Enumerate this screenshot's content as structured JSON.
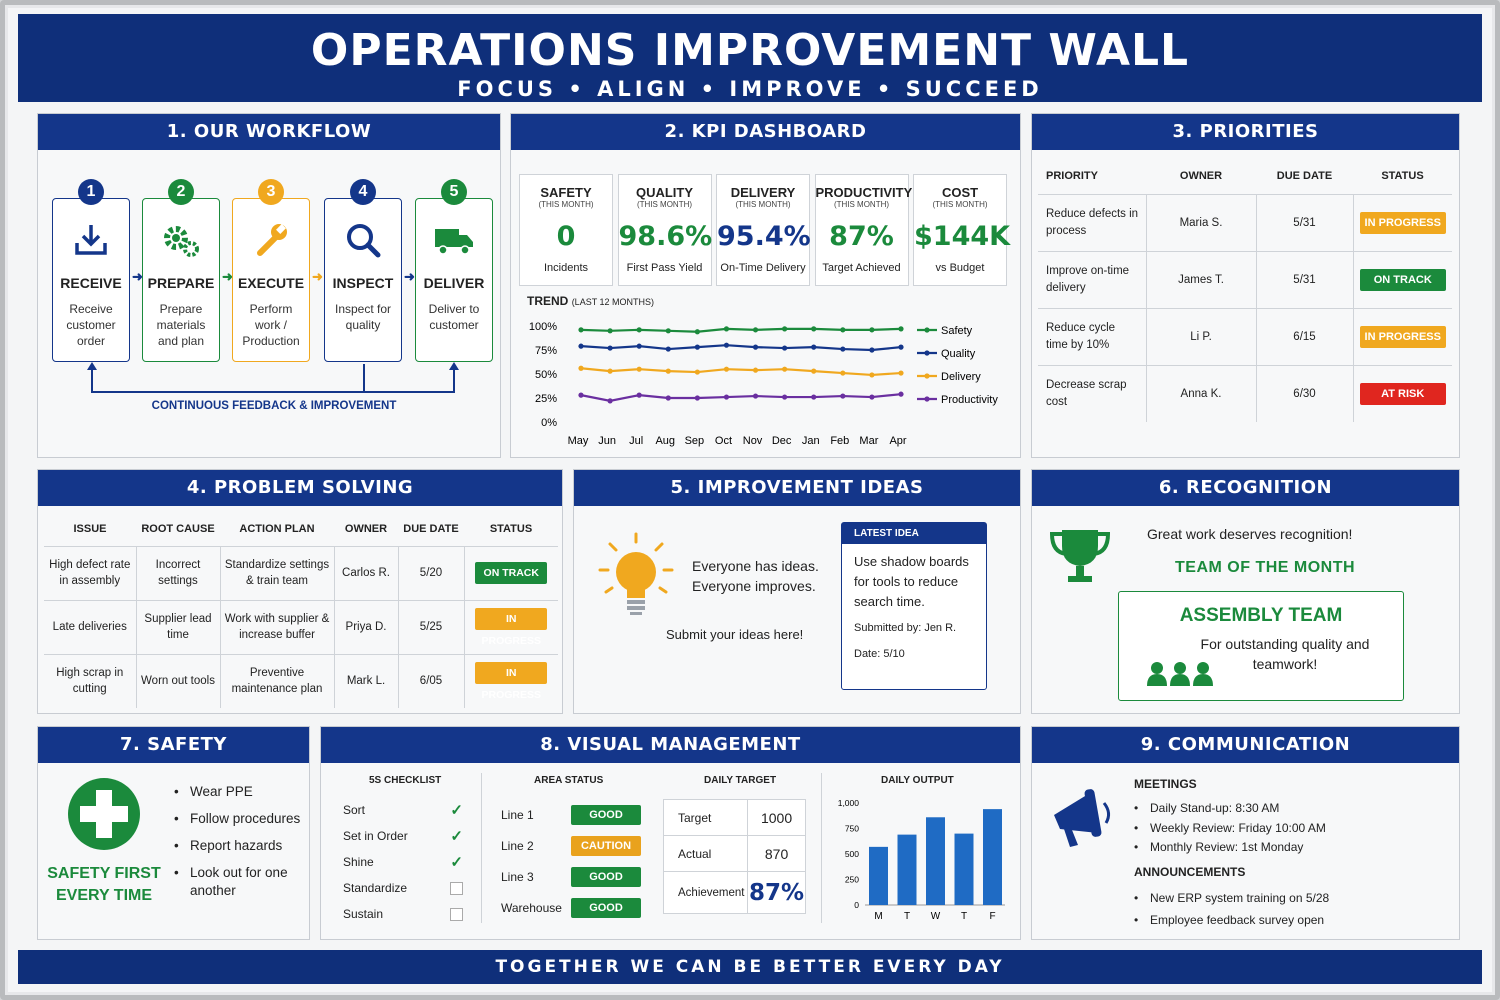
{
  "header": {
    "title": "OPERATIONS IMPROVEMENT WALL",
    "subtitle": "FOCUS • ALIGN • IMPROVE • SUCCEED"
  },
  "footer": {
    "text": "TOGETHER WE CAN BE BETTER EVERY DAY"
  },
  "workflow": {
    "title": "1. OUR WORKFLOW",
    "steps": [
      {
        "num": "1",
        "label": "RECEIVE",
        "desc": "Receive customer order",
        "icon": "download-icon",
        "color": "#14368a"
      },
      {
        "num": "2",
        "label": "PREPARE",
        "desc": "Prepare materials and plan",
        "icon": "gears-icon",
        "color": "#1b8a3c"
      },
      {
        "num": "3",
        "label": "EXECUTE",
        "desc": "Perform work / Production",
        "icon": "wrench-icon",
        "color": "#f0a81f"
      },
      {
        "num": "4",
        "label": "INSPECT",
        "desc": "Inspect for quality",
        "icon": "magnifier-icon",
        "color": "#14368a"
      },
      {
        "num": "5",
        "label": "DELIVER",
        "desc": "Deliver to customer",
        "icon": "truck-icon",
        "color": "#1b8a3c"
      }
    ],
    "feedback": "CONTINUOUS FEEDBACK & IMPROVEMENT"
  },
  "kpi": {
    "title": "2. KPI DASHBOARD",
    "cards": [
      {
        "name": "SAFETY",
        "sub": "(THIS MONTH)",
        "value": "0",
        "label": "Incidents",
        "color": "#1b8a3c"
      },
      {
        "name": "QUALITY",
        "sub": "(THIS MONTH)",
        "value": "98.6%",
        "label": "First Pass Yield",
        "color": "#1b8a3c"
      },
      {
        "name": "DELIVERY",
        "sub": "(THIS MONTH)",
        "value": "95.4%",
        "label": "On-Time Delivery",
        "color": "#14368a"
      },
      {
        "name": "PRODUCTIVITY",
        "sub": "(THIS MONTH)",
        "value": "87%",
        "label": "Target Achieved",
        "color": "#1b8a3c"
      },
      {
        "name": "COST",
        "sub": "(THIS MONTH)",
        "value": "$144K",
        "label": "vs Budget",
        "color": "#1b8a3c"
      }
    ],
    "trend_title": "TREND",
    "trend_sub": "(LAST 12 MONTHS)"
  },
  "chart_data": [
    {
      "type": "line",
      "title": "TREND (LAST 12 MONTHS)",
      "x": [
        "May",
        "Jun",
        "Jul",
        "Aug",
        "Sep",
        "Oct",
        "Nov",
        "Dec",
        "Jan",
        "Feb",
        "Mar",
        "Apr"
      ],
      "ylim": [
        0,
        100
      ],
      "yticks": [
        "0%",
        "25%",
        "50%",
        "75%",
        "100%"
      ],
      "series": [
        {
          "name": "Safety",
          "color": "#1b8a3c",
          "values": [
            96,
            95,
            96,
            95,
            94,
            97,
            96,
            97,
            97,
            96,
            96,
            97
          ]
        },
        {
          "name": "Quality",
          "color": "#14368a",
          "values": [
            79,
            77,
            79,
            76,
            78,
            80,
            78,
            77,
            78,
            76,
            75,
            78
          ]
        },
        {
          "name": "Delivery",
          "color": "#f0a81f",
          "values": [
            56,
            53,
            55,
            53,
            52,
            55,
            54,
            55,
            53,
            51,
            49,
            51
          ]
        },
        {
          "name": "Productivity",
          "color": "#6a2fa0",
          "values": [
            28,
            22,
            28,
            25,
            25,
            26,
            27,
            26,
            26,
            27,
            26,
            29
          ]
        }
      ],
      "legend": "right"
    },
    {
      "type": "bar",
      "title": "DAILY OUTPUT",
      "categories": [
        "M",
        "T",
        "W",
        "T",
        "F"
      ],
      "values": [
        570,
        690,
        860,
        700,
        940
      ],
      "ylim": [
        0,
        1000
      ],
      "yticks": [
        "0",
        "250",
        "500",
        "750",
        "1,000"
      ],
      "color": "#1f6bc4"
    }
  ],
  "priorities": {
    "title": "3. PRIORITIES",
    "headers": [
      "PRIORITY",
      "OWNER",
      "DUE DATE",
      "STATUS"
    ],
    "rows": [
      {
        "priority": "Reduce defects in process",
        "owner": "Maria S.",
        "due": "5/31",
        "status": "IN PROGRESS",
        "cls": "b-prog"
      },
      {
        "priority": "Improve on-time delivery",
        "owner": "James T.",
        "due": "5/31",
        "status": "ON TRACK",
        "cls": "b-track"
      },
      {
        "priority": "Reduce cycle time by 10%",
        "owner": "Li P.",
        "due": "6/15",
        "status": "IN PROGRESS",
        "cls": "b-prog"
      },
      {
        "priority": "Decrease scrap cost",
        "owner": "Anna K.",
        "due": "6/30",
        "status": "AT RISK",
        "cls": "b-risk"
      }
    ]
  },
  "problem": {
    "title": "4. PROBLEM SOLVING",
    "headers": [
      "ISSUE",
      "ROOT CAUSE",
      "ACTION PLAN",
      "OWNER",
      "DUE DATE",
      "STATUS"
    ],
    "rows": [
      {
        "issue": "High defect rate in assembly",
        "cause": "Incorrect settings",
        "action": "Standardize settings & train team",
        "owner": "Carlos R.",
        "due": "5/20",
        "status": "ON TRACK",
        "cls": "b-track"
      },
      {
        "issue": "Late deliveries",
        "cause": "Supplier lead time",
        "action": "Work with supplier & increase buffer",
        "owner": "Priya D.",
        "due": "5/25",
        "status": "IN PROGRESS",
        "cls": "b-prog"
      },
      {
        "issue": "High scrap in cutting",
        "cause": "Worn out tools",
        "action": "Preventive maintenance plan",
        "owner": "Mark L.",
        "due": "6/05",
        "status": "IN PROGRESS",
        "cls": "b-prog"
      }
    ]
  },
  "ideas": {
    "title": "5. IMPROVEMENT IDEAS",
    "line1": "Everyone has ideas.",
    "line2": "Everyone improves.",
    "submit": "Submit your ideas here!",
    "latest_label": "LATEST IDEA",
    "latest_text": "Use shadow boards for tools to reduce search time.",
    "submitted": "Submitted by: Jen R.",
    "date": "Date: 5/10"
  },
  "recognition": {
    "title": "6. RECOGNITION",
    "tagline": "Great work deserves recognition!",
    "team_label": "TEAM OF THE MONTH",
    "team": "ASSEMBLY TEAM",
    "reason": "For outstanding quality and teamwork!"
  },
  "safety": {
    "title": "7. SAFETY",
    "slogan1": "SAFETY FIRST",
    "slogan2": "EVERY TIME",
    "items": [
      "Wear PPE",
      "Follow procedures",
      "Report hazards",
      "Look out for one another"
    ]
  },
  "visual": {
    "title": "8. VISUAL MANAGEMENT",
    "checklist_title": "5S CHECKLIST",
    "checklist": [
      {
        "item": "Sort",
        "done": true
      },
      {
        "item": "Set in Order",
        "done": true
      },
      {
        "item": "Shine",
        "done": true
      },
      {
        "item": "Standardize",
        "done": false
      },
      {
        "item": "Sustain",
        "done": false
      }
    ],
    "area_title": "AREA STATUS",
    "areas": [
      {
        "name": "Line 1",
        "status": "GOOD",
        "cls": "b-track"
      },
      {
        "name": "Line 2",
        "status": "CAUTION",
        "cls": "b-caution"
      },
      {
        "name": "Line 3",
        "status": "GOOD",
        "cls": "b-track"
      },
      {
        "name": "Warehouse",
        "status": "GOOD",
        "cls": "b-track"
      }
    ],
    "target_title": "DAILY TARGET",
    "target_label": "Target",
    "target_value": "1000",
    "actual_label": "Actual",
    "actual_value": "870",
    "ach_label": "Achievement",
    "ach_value": "87%",
    "output_title": "DAILY OUTPUT"
  },
  "communication": {
    "title": "9. COMMUNICATION",
    "meetings_title": "MEETINGS",
    "meetings": [
      "Daily Stand-up: 8:30 AM",
      "Weekly Review: Friday 10:00 AM",
      "Monthly Review: 1st Monday"
    ],
    "ann_title": "ANNOUNCEMENTS",
    "announcements": [
      "New ERP system training on 5/28",
      "Employee feedback survey open"
    ]
  }
}
